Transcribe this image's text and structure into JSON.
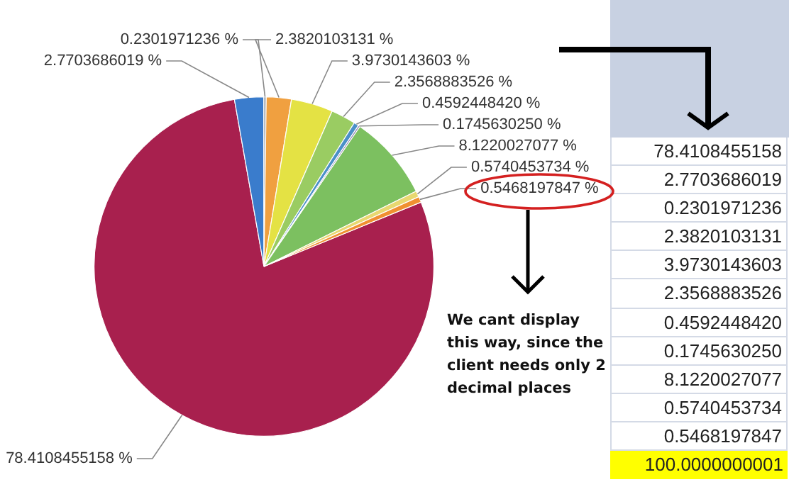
{
  "chart_data": {
    "type": "pie",
    "categories": [
      null,
      null,
      null,
      null,
      null,
      null,
      null,
      null,
      null,
      null,
      null
    ],
    "values": [
      78.4108455158,
      2.7703686019,
      0.2301971236,
      2.3820103131,
      3.9730143603,
      2.3568883526,
      0.459244842,
      0.174563025,
      8.1220027077,
      0.5740453734,
      0.5468197847
    ],
    "colors": [
      "#a8204e",
      "#3a7ccc",
      "#9aa0a8",
      "#f0a040",
      "#e4e244",
      "#9acc62",
      "#4a90c8",
      "#8a80b0",
      "#7cc060",
      "#e8d870",
      "#f09030"
    ],
    "value_labels": [
      "78.4108455158 %",
      "2.7703686019 %",
      "0.2301971236 %",
      "2.3820103131 %",
      "3.9730143603 %",
      "2.3568883526 %",
      "0.4592448420 %",
      "0.1745630250 %",
      "8.1220027077 %",
      "0.5740453734 %",
      "0.5468197847 %"
    ],
    "annotations": [
      "We cant display this way, since the client needs only 2 decimal places",
      "78.4108455158",
      "2.7703686019",
      "0.2301971236",
      "2.3820103131",
      "3.9730143603",
      "2.3568883526",
      "0.4592448420",
      "0.1745630250",
      "8.1220027077",
      "0.5740453734",
      "0.5468197847",
      "100.0000000001"
    ]
  }
}
